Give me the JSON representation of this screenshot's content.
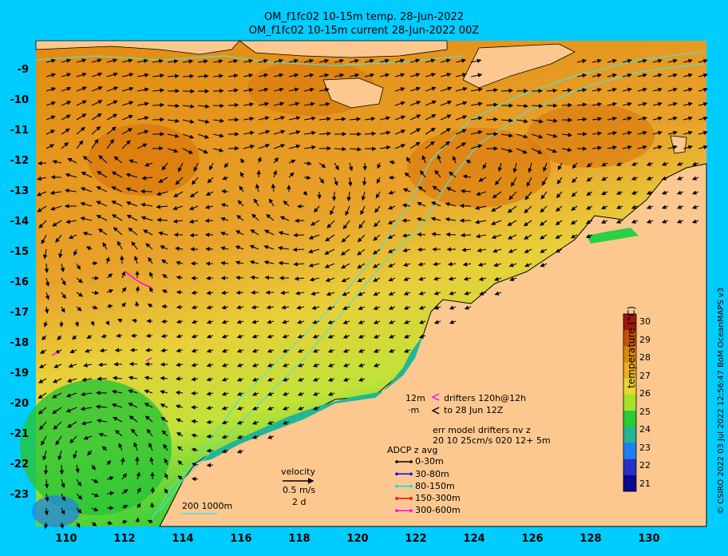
{
  "title_line1": "OM_f1fc02 10-15m temp. 28-Jun-2022",
  "title_line2": "OM_f1fc02 10-15m current 28-Jun-2022 00Z",
  "lat_labels": [
    "-9",
    "-10",
    "-11",
    "-12",
    "-13",
    "-14",
    "-15",
    "-16",
    "-17",
    "-18",
    "-19",
    "-20",
    "-21",
    "-22",
    "-23"
  ],
  "lon_labels": [
    "110",
    "112",
    "114",
    "116",
    "118",
    "120",
    "122",
    "124",
    "126",
    "128",
    "130"
  ],
  "colorbar": {
    "ticks": [
      "30",
      "29",
      "28",
      "27",
      "26",
      "25",
      "24",
      "23",
      "22",
      "21"
    ],
    "label": "temperature (°C)",
    "colors": [
      "#9b1a06",
      "#c4500a",
      "#d98a0c",
      "#eab11e",
      "#e9d634",
      "#a6e02a",
      "#27cc36",
      "#22b596",
      "#1e7ff0",
      "#2432c8",
      "#0b0a8c"
    ]
  },
  "credit": "© CSIRO 2022  03 Jul 2022 12:56:47 BoM OceanMAPS v3",
  "drifters": {
    "line1_depth": "12m",
    "line1_text": "drifters 120h@12h",
    "line2_depth": "·m",
    "line2_text": "to 28 Jun 12Z",
    "err_line1": "err model drifters nv z",
    "err_line2": "20 10 25cm/s 020 12+ 5m"
  },
  "adcp": {
    "title": "ADCP z avg",
    "items": [
      {
        "label": "0-30m",
        "color": "#000000"
      },
      {
        "label": "30-80m",
        "color": "#0000ff"
      },
      {
        "label": "80-150m",
        "color": "#00e0e0"
      },
      {
        "label": "150-300m",
        "color": "#ff0000"
      },
      {
        "label": "300-600m",
        "color": "#ff00ff"
      }
    ]
  },
  "velocity": {
    "title": "velocity",
    "speed": "0.5 m/s",
    "duration": "2 d"
  },
  "bathymetry_contours": "200  1000m"
}
